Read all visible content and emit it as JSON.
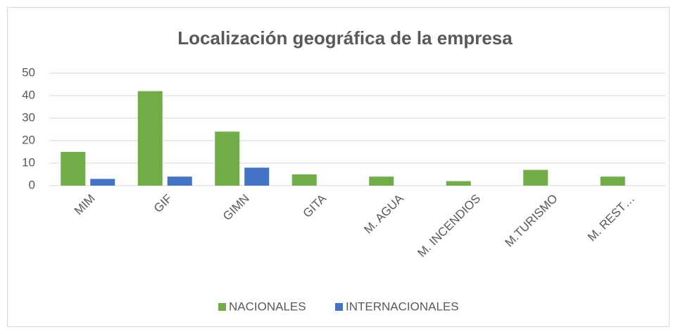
{
  "chart_data": {
    "type": "bar",
    "title": "Localización geográfica de la empresa",
    "categories": [
      "MIM",
      "GIF",
      "GIMN",
      "GITA",
      "M. AGUA",
      "M. INCENDIOS",
      "M.TURISMO",
      "M. REST…"
    ],
    "series": [
      {
        "name": "NACIONALES",
        "color": "#70ad47",
        "values": [
          15,
          42,
          24,
          5,
          4,
          2,
          7,
          4
        ]
      },
      {
        "name": "INTERNACIONALES",
        "color": "#4472c4",
        "values": [
          3,
          4,
          8,
          0,
          0,
          0,
          0,
          0
        ]
      }
    ],
    "ylim": [
      0,
      50
    ],
    "yticks": [
      0,
      10,
      20,
      30,
      40,
      50
    ],
    "grid": true,
    "legend": "bottom"
  }
}
